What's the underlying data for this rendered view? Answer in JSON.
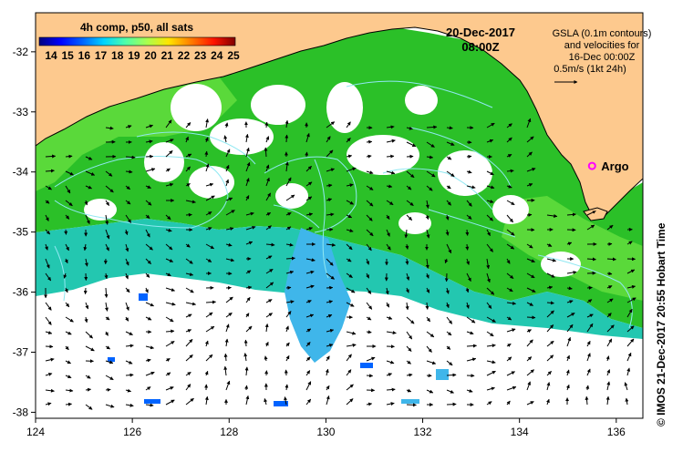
{
  "colorbar": {
    "title": "4h comp, p50, all sats",
    "labels": [
      "14",
      "15",
      "16",
      "17",
      "18",
      "19",
      "20",
      "21",
      "22",
      "23",
      "24",
      "25"
    ],
    "colors": [
      "#00007f",
      "#0000ff",
      "#0063ff",
      "#00d4ff",
      "#4effa9",
      "#a9ff4e",
      "#ffe500",
      "#ff7700",
      "#ff1400",
      "#7f0000"
    ]
  },
  "timestamp": {
    "date": "20-Dec-2017",
    "time": "08:00Z"
  },
  "legend": {
    "line1": "GSLA (0.1m contours)",
    "line2": "and velocities for",
    "line3": "16-Dec 00:00Z",
    "line4": "0.5m/s (1kt 24h)"
  },
  "argo": {
    "label": "Argo",
    "color": "#ff00ff",
    "lon": 135.5,
    "lat": -33.9
  },
  "axes": {
    "x_ticks": [
      "124",
      "126",
      "128",
      "130",
      "132",
      "134",
      "136"
    ],
    "y_ticks": [
      "-32",
      "-33",
      "-34",
      "-35",
      "-36",
      "-37",
      "-38"
    ]
  },
  "footer": "© IMOS 21-Dec-2017 20:55 Hobart Time",
  "colors": {
    "land": "#fdc98e",
    "warm": "#2bc028",
    "mid": "#5ad93a",
    "cool": "#23c7b0",
    "cold": "#3fb6ea"
  }
}
